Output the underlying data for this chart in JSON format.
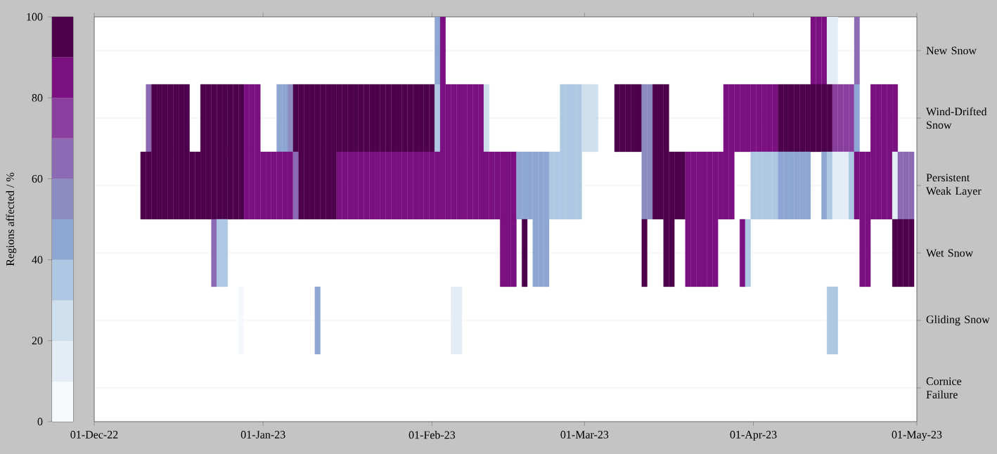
{
  "chart_data": {
    "type": "heatmap",
    "x": [
      "2022-12-01",
      "2022-12-02",
      "2022-12-03",
      "2022-12-04",
      "2022-12-05",
      "2022-12-06",
      "2022-12-07",
      "2022-12-08",
      "2022-12-09",
      "2022-12-10",
      "2022-12-11",
      "2022-12-12",
      "2022-12-13",
      "2022-12-14",
      "2022-12-15",
      "2022-12-16",
      "2022-12-17",
      "2022-12-18",
      "2022-12-19",
      "2022-12-20",
      "2022-12-21",
      "2022-12-22",
      "2022-12-23",
      "2022-12-24",
      "2022-12-25",
      "2022-12-26",
      "2022-12-27",
      "2022-12-28",
      "2022-12-29",
      "2022-12-30",
      "2022-12-31",
      "2023-01-01",
      "2023-01-02",
      "2023-01-03",
      "2023-01-04",
      "2023-01-05",
      "2023-01-06",
      "2023-01-07",
      "2023-01-08",
      "2023-01-09",
      "2023-01-10",
      "2023-01-11",
      "2023-01-12",
      "2023-01-13",
      "2023-01-14",
      "2023-01-15",
      "2023-01-16",
      "2023-01-17",
      "2023-01-18",
      "2023-01-19",
      "2023-01-20",
      "2023-01-21",
      "2023-01-22",
      "2023-01-23",
      "2023-01-24",
      "2023-01-25",
      "2023-01-26",
      "2023-01-27",
      "2023-01-28",
      "2023-01-29",
      "2023-01-30",
      "2023-01-31",
      "2023-02-01",
      "2023-02-02",
      "2023-02-03",
      "2023-02-04",
      "2023-02-05",
      "2023-02-06",
      "2023-02-07",
      "2023-02-08",
      "2023-02-09",
      "2023-02-10",
      "2023-02-11",
      "2023-02-12",
      "2023-02-13",
      "2023-02-14",
      "2023-02-15",
      "2023-02-16",
      "2023-02-17",
      "2023-02-18",
      "2023-02-19",
      "2023-02-20",
      "2023-02-21",
      "2023-02-22",
      "2023-02-23",
      "2023-02-24",
      "2023-02-25",
      "2023-02-26",
      "2023-02-27",
      "2023-02-28",
      "2023-03-01",
      "2023-03-02",
      "2023-03-03",
      "2023-03-04",
      "2023-03-05",
      "2023-03-06",
      "2023-03-07",
      "2023-03-08",
      "2023-03-09",
      "2023-03-10",
      "2023-03-11",
      "2023-03-12",
      "2023-03-13",
      "2023-03-14",
      "2023-03-15",
      "2023-03-16",
      "2023-03-17",
      "2023-03-18",
      "2023-03-19",
      "2023-03-20",
      "2023-03-21",
      "2023-03-22",
      "2023-03-23",
      "2023-03-24",
      "2023-03-25",
      "2023-03-26",
      "2023-03-27",
      "2023-03-28",
      "2023-03-29",
      "2023-03-30",
      "2023-03-31",
      "2023-04-01",
      "2023-04-02",
      "2023-04-03",
      "2023-04-04",
      "2023-04-05",
      "2023-04-06",
      "2023-04-07",
      "2023-04-08",
      "2023-04-09",
      "2023-04-10",
      "2023-04-11",
      "2023-04-12",
      "2023-04-13",
      "2023-04-14",
      "2023-04-15",
      "2023-04-16",
      "2023-04-17",
      "2023-04-18",
      "2023-04-19",
      "2023-04-20",
      "2023-04-21",
      "2023-04-22",
      "2023-04-23",
      "2023-04-24",
      "2023-04-25",
      "2023-04-26",
      "2023-04-27",
      "2023-04-28",
      "2023-04-29",
      "2023-04-30"
    ],
    "xlim": [
      "2022-12-01",
      "2023-05-01"
    ],
    "xticks": [
      {
        "value": "2022-12-01",
        "label": "01-Dec-22"
      },
      {
        "value": "2023-01-01",
        "label": "01-Jan-23"
      },
      {
        "value": "2023-02-01",
        "label": "01-Feb-23"
      },
      {
        "value": "2023-03-01",
        "label": "01-Mar-23"
      },
      {
        "value": "2023-04-01",
        "label": "01-Apr-23"
      },
      {
        "value": "2023-05-01",
        "label": "01-May-23"
      }
    ],
    "y_categories": [
      "New Snow",
      "Wind-Drifted Snow",
      "Persistent Weak Layer",
      "Wet Snow",
      "Gliding Snow",
      "Cornice Failure"
    ],
    "cells": [
      [
        null,
        null,
        null,
        null,
        null,
        null,
        null,
        null,
        null,
        null,
        null,
        null,
        null,
        null,
        null,
        null,
        null,
        null,
        null,
        null,
        null,
        null,
        null,
        null,
        null,
        null,
        null,
        null,
        null,
        null,
        null,
        null,
        null,
        null,
        null,
        null,
        null,
        null,
        null,
        null,
        null,
        null,
        null,
        null,
        null,
        null,
        null,
        null,
        null,
        null,
        null,
        null,
        null,
        null,
        null,
        null,
        null,
        null,
        null,
        null,
        null,
        null,
        null,
        45,
        85,
        null,
        null,
        null,
        null,
        null,
        null,
        null,
        null,
        null,
        null,
        null,
        null,
        null,
        null,
        null,
        null,
        null,
        null,
        null,
        null,
        null,
        null,
        null,
        null,
        null,
        null,
        null,
        null,
        null,
        null,
        null,
        null,
        null,
        null,
        null,
        null,
        null,
        null,
        null,
        null,
        null,
        null,
        null,
        null,
        null,
        null,
        null,
        null,
        null,
        null,
        null,
        null,
        null,
        null,
        null,
        null,
        null,
        null,
        null,
        null,
        null,
        null,
        null,
        null,
        null,
        null,
        null,
        85,
        85,
        85,
        15,
        15,
        null,
        null,
        null,
        65,
        null,
        null,
        null,
        null,
        null,
        null,
        null,
        null,
        null,
        null
      ],
      [
        null,
        null,
        null,
        null,
        null,
        null,
        null,
        null,
        null,
        null,
        65,
        95,
        95,
        95,
        95,
        95,
        95,
        95,
        null,
        null,
        95,
        95,
        95,
        95,
        95,
        95,
        95,
        95,
        85,
        85,
        85,
        null,
        null,
        null,
        45,
        45,
        55,
        95,
        95,
        95,
        95,
        95,
        95,
        95,
        95,
        95,
        95,
        95,
        95,
        95,
        95,
        95,
        95,
        95,
        95,
        95,
        95,
        95,
        95,
        95,
        95,
        95,
        95,
        35,
        85,
        85,
        85,
        85,
        85,
        85,
        85,
        85,
        25,
        null,
        null,
        null,
        null,
        null,
        null,
        null,
        null,
        null,
        null,
        null,
        null,
        null,
        35,
        35,
        35,
        35,
        25,
        25,
        25,
        null,
        null,
        null,
        95,
        95,
        95,
        95,
        95,
        55,
        55,
        95,
        95,
        95,
        null,
        null,
        null,
        null,
        null,
        null,
        null,
        null,
        null,
        null,
        85,
        85,
        85,
        85,
        85,
        85,
        85,
        85,
        85,
        85,
        95,
        95,
        95,
        95,
        95,
        95,
        95,
        95,
        95,
        95,
        75,
        75,
        75,
        75,
        45,
        null,
        null,
        85,
        85,
        85,
        85,
        85,
        null,
        null,
        null
      ],
      [
        null,
        null,
        null,
        null,
        null,
        null,
        null,
        null,
        null,
        95,
        95,
        95,
        95,
        95,
        95,
        95,
        95,
        95,
        95,
        95,
        95,
        95,
        95,
        95,
        95,
        95,
        95,
        95,
        85,
        85,
        85,
        85,
        85,
        85,
        85,
        85,
        85,
        65,
        95,
        95,
        95,
        95,
        95,
        95,
        95,
        85,
        85,
        85,
        85,
        85,
        85,
        85,
        85,
        85,
        85,
        85,
        85,
        85,
        85,
        85,
        85,
        85,
        85,
        85,
        85,
        85,
        85,
        85,
        85,
        85,
        85,
        85,
        85,
        85,
        85,
        85,
        85,
        85,
        45,
        45,
        45,
        45,
        45,
        45,
        35,
        35,
        35,
        35,
        35,
        35,
        null,
        null,
        null,
        null,
        null,
        null,
        null,
        null,
        null,
        null,
        null,
        55,
        55,
        95,
        95,
        95,
        95,
        95,
        95,
        85,
        85,
        85,
        85,
        85,
        85,
        85,
        85,
        85,
        null,
        null,
        null,
        35,
        35,
        35,
        35,
        35,
        45,
        45,
        45,
        45,
        45,
        45,
        null,
        null,
        45,
        35,
        15,
        15,
        15,
        35,
        85,
        85,
        85,
        85,
        85,
        85,
        85,
        15,
        65,
        65,
        65
      ],
      [
        null,
        null,
        null,
        null,
        null,
        null,
        null,
        null,
        null,
        null,
        null,
        null,
        null,
        null,
        null,
        null,
        null,
        null,
        null,
        null,
        null,
        null,
        65,
        35,
        35,
        null,
        null,
        null,
        null,
        null,
        null,
        null,
        null,
        null,
        null,
        null,
        null,
        null,
        null,
        null,
        null,
        null,
        null,
        null,
        null,
        null,
        null,
        null,
        null,
        null,
        null,
        null,
        null,
        null,
        null,
        null,
        null,
        null,
        null,
        null,
        null,
        null,
        null,
        null,
        null,
        null,
        null,
        null,
        null,
        null,
        null,
        null,
        null,
        null,
        null,
        85,
        85,
        85,
        null,
        95,
        null,
        45,
        45,
        45,
        null,
        null,
        null,
        null,
        null,
        null,
        null,
        null,
        null,
        null,
        null,
        null,
        null,
        null,
        null,
        null,
        null,
        95,
        null,
        null,
        null,
        95,
        95,
        null,
        null,
        85,
        85,
        85,
        85,
        85,
        85,
        null,
        null,
        null,
        null,
        85,
        35,
        null,
        null,
        null,
        null,
        null,
        null,
        null,
        null,
        null,
        null,
        null,
        null,
        null,
        null,
        null,
        null,
        null,
        null,
        null,
        null,
        85,
        85,
        null,
        null,
        null,
        null,
        95,
        95,
        95,
        95
      ],
      [
        null,
        null,
        null,
        null,
        null,
        null,
        null,
        null,
        null,
        null,
        null,
        null,
        null,
        null,
        null,
        null,
        null,
        null,
        null,
        null,
        null,
        null,
        null,
        null,
        null,
        null,
        null,
        5,
        null,
        null,
        null,
        null,
        null,
        null,
        null,
        null,
        null,
        null,
        null,
        null,
        null,
        45,
        null,
        null,
        null,
        null,
        null,
        null,
        null,
        null,
        null,
        null,
        null,
        null,
        null,
        null,
        null,
        null,
        null,
        null,
        null,
        null,
        null,
        null,
        null,
        null,
        15,
        15,
        null,
        null,
        null,
        null,
        null,
        null,
        null,
        null,
        null,
        null,
        null,
        null,
        null,
        null,
        null,
        null,
        null,
        null,
        null,
        null,
        null,
        null,
        null,
        null,
        null,
        null,
        null,
        null,
        null,
        null,
        null,
        null,
        null,
        null,
        null,
        null,
        null,
        null,
        null,
        null,
        null,
        null,
        null,
        null,
        null,
        null,
        null,
        null,
        null,
        null,
        null,
        null,
        null,
        null,
        null,
        null,
        null,
        null,
        null,
        null,
        null,
        null,
        null,
        null,
        null,
        null,
        null,
        35,
        35,
        null,
        null,
        null,
        null,
        null,
        null,
        null,
        null,
        null,
        null,
        null,
        null,
        null,
        null
      ],
      [
        null,
        null,
        null,
        null,
        null,
        null,
        null,
        null,
        null,
        null,
        null,
        null,
        null,
        null,
        null,
        null,
        null,
        null,
        null,
        null,
        null,
        null,
        null,
        null,
        null,
        null,
        null,
        null,
        null,
        null,
        null,
        null,
        null,
        null,
        null,
        null,
        null,
        null,
        null,
        null,
        null,
        null,
        null,
        null,
        null,
        null,
        null,
        null,
        null,
        null,
        null,
        null,
        null,
        null,
        null,
        null,
        null,
        null,
        null,
        null,
        null,
        null,
        null,
        null,
        null,
        null,
        null,
        null,
        null,
        null,
        null,
        null,
        null,
        null,
        null,
        null,
        null,
        null,
        null,
        null,
        null,
        null,
        null,
        null,
        null,
        null,
        null,
        null,
        null,
        null,
        null,
        null,
        null,
        null,
        null,
        null,
        null,
        null,
        null,
        null,
        null,
        null,
        null,
        null,
        null,
        null,
        null,
        null,
        null,
        null,
        null,
        null,
        null,
        null,
        null,
        null,
        null,
        null,
        null,
        null,
        null,
        null,
        null,
        null,
        null,
        null,
        null,
        null,
        null,
        null,
        null,
        null,
        null,
        null,
        null,
        null,
        null,
        null,
        null,
        null,
        null,
        null,
        null,
        null,
        null,
        null,
        null,
        null,
        null,
        null,
        null
      ]
    ],
    "clabel": "Regions affected / %",
    "clim": [
      0,
      100
    ],
    "cticks": [
      0,
      20,
      40,
      60,
      80,
      100
    ],
    "grid": "y"
  }
}
